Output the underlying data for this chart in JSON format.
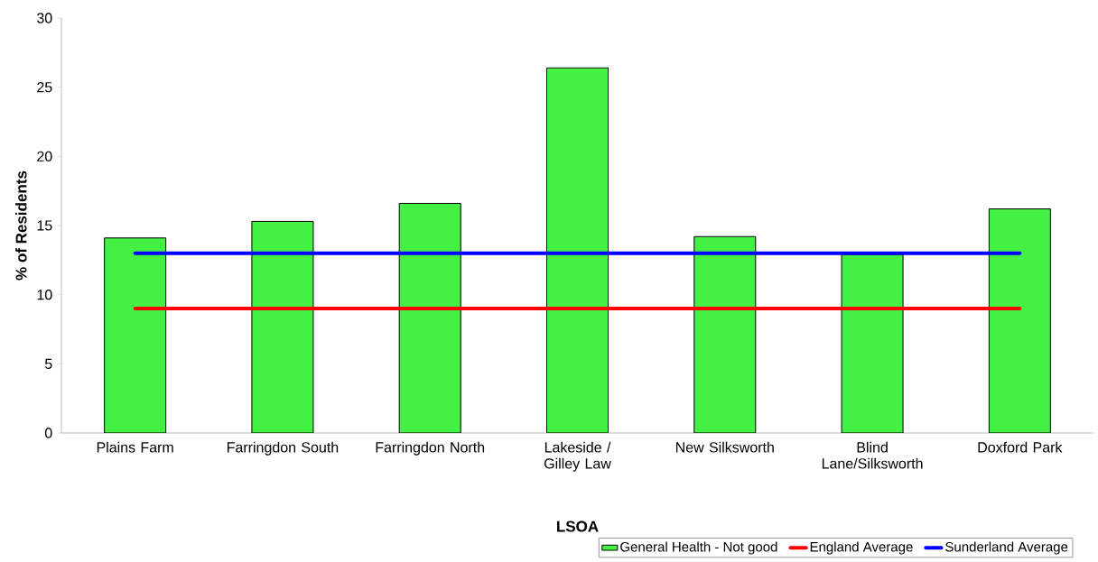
{
  "chart_data": {
    "type": "bar",
    "xlabel": "LSOA",
    "ylabel": "% of Residents",
    "categories": [
      "Plains Farm",
      "Farringdon South",
      "Farringdon North",
      "Lakeside / Gilley Law",
      "New Silksworth",
      "Blind Lane/Silksworth",
      "Doxford Park"
    ],
    "series": [
      {
        "name": "General Health - Not good",
        "color": "#44f044",
        "values": [
          14.1,
          15.3,
          16.6,
          26.4,
          14.2,
          12.9,
          16.2
        ]
      },
      {
        "name": "England Average",
        "type": "line",
        "color": "#ff0000",
        "values": [
          9.0,
          9.0,
          9.0,
          9.0,
          9.0,
          9.0,
          9.0
        ]
      },
      {
        "name": "Sunderland Average",
        "type": "line",
        "color": "#0000ff",
        "values": [
          13.0,
          13.0,
          13.0,
          13.0,
          13.0,
          13.0,
          13.0
        ]
      }
    ],
    "ylim": [
      0,
      30
    ],
    "yticks": [
      0,
      5,
      10,
      15,
      20,
      25,
      30
    ],
    "legend": "bottom",
    "marker": "none"
  }
}
